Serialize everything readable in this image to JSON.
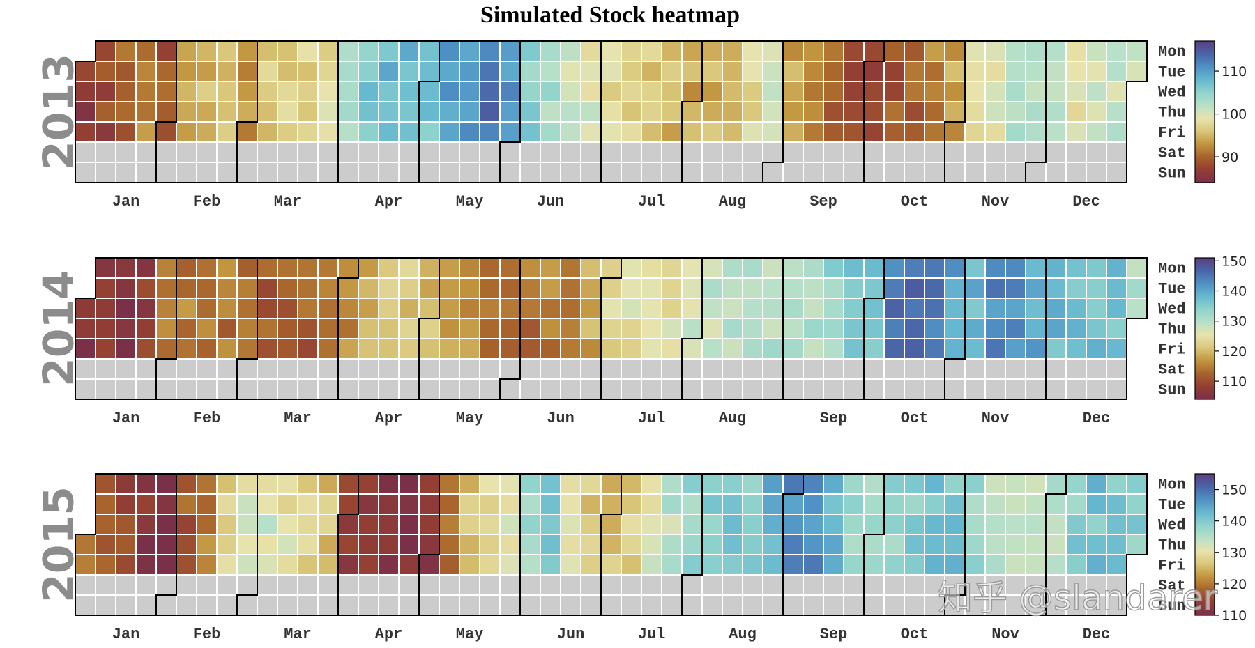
{
  "title": "Simulated Stock heatmap",
  "watermark": "知乎 @slandarer",
  "colors": {
    "missing": "#cccccc",
    "grid": "#ffffff",
    "boundary": "#000000",
    "colormap": [
      "#7b3049",
      "#933e34",
      "#a8632c",
      "#c2953f",
      "#d9c77a",
      "#e8e3ad",
      "#b8e0c8",
      "#8fd3cc",
      "#66b8d0",
      "#4f90c4",
      "#4a64a8",
      "#5a3e80"
    ]
  },
  "chart_data": {
    "type": "heatmap",
    "weekdays": [
      "Mon",
      "Tue",
      "Wed",
      "Thu",
      "Fri",
      "Sat",
      "Sun"
    ],
    "months": [
      "Jan",
      "Feb",
      "Mar",
      "Apr",
      "May",
      "Jun",
      "Jul",
      "Aug",
      "Sep",
      "Oct",
      "Nov",
      "Dec"
    ],
    "value_resolution": "weekly average of weekday values, one value per calendar week (Mon–Fri); weekends have no data",
    "years": [
      {
        "year": "2013",
        "colorbar": {
          "ticks": [
            90,
            100,
            110
          ],
          "range": [
            84,
            117
          ]
        },
        "weekly_values": [
          86,
          88,
          90,
          92,
          89,
          94,
          95,
          95,
          93,
          96,
          97,
          97,
          98,
          104,
          106,
          108,
          108,
          107,
          110,
          111,
          113,
          110,
          105,
          103,
          101,
          100,
          98,
          97,
          96,
          95,
          94,
          95,
          96,
          98,
          100,
          94,
          91,
          90,
          88,
          88,
          89,
          90,
          92,
          94,
          98,
          100,
          102,
          102,
          101,
          99,
          100,
          101,
          102,
          103
        ]
      },
      {
        "year": "2014",
        "colorbar": {
          "ticks": [
            110,
            120,
            130,
            140,
            150
          ],
          "range": [
            104,
            151
          ]
        },
        "weekly_values": [
          106,
          106,
          106,
          108,
          114,
          115,
          114,
          114,
          113,
          112,
          112,
          112,
          113,
          116,
          120,
          122,
          121,
          120,
          119,
          117,
          115,
          113,
          114,
          115,
          116,
          118,
          124,
          125,
          126,
          125,
          128,
          129,
          129,
          130,
          130,
          130,
          131,
          133,
          135,
          137,
          145,
          146,
          144,
          140,
          138,
          143,
          142,
          140,
          138,
          137,
          137,
          136,
          130,
          126
        ]
      },
      {
        "year": "2015",
        "colorbar": {
          "ticks": [
            110,
            120,
            130,
            140,
            150
          ],
          "range": [
            110,
            155
          ]
        },
        "weekly_values": [
          118,
          118,
          115,
          112,
          111,
          117,
          120,
          128,
          132,
          132,
          130,
          127,
          126,
          114,
          112,
          111,
          111,
          112,
          120,
          126,
          128,
          132,
          137,
          140,
          132,
          127,
          126,
          127,
          131,
          134,
          138,
          139,
          141,
          140,
          144,
          147,
          147,
          143,
          137,
          137,
          138,
          139,
          141,
          141,
          138,
          134,
          133,
          133,
          135,
          139,
          141,
          140,
          139,
          136
        ]
      }
    ]
  }
}
